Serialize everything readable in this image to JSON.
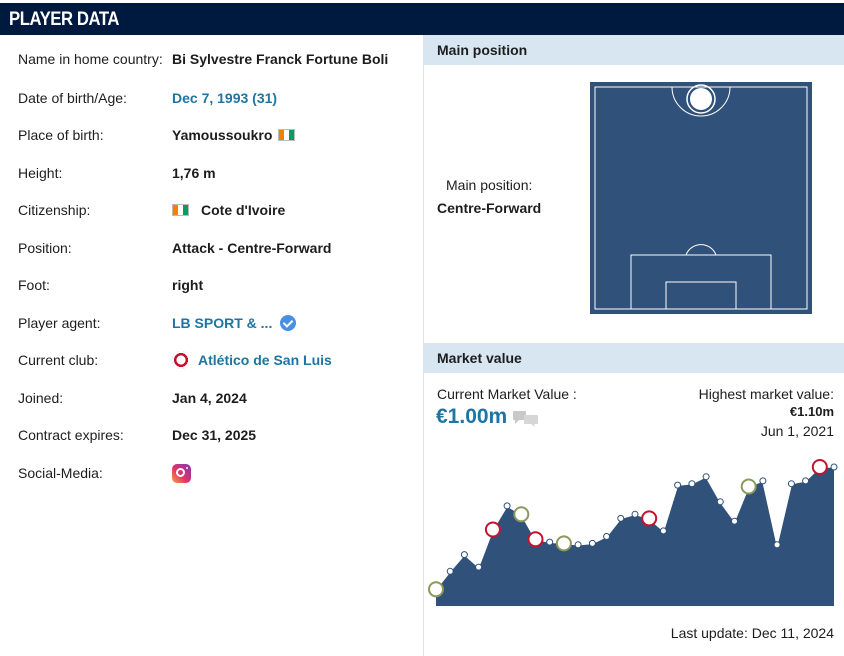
{
  "header": {
    "title": "PLAYER DATA"
  },
  "player": {
    "rows": [
      {
        "label": "Name in home country:",
        "value": "Bi Sylvestre Franck Fortune Boli"
      },
      {
        "label": "Date of birth/Age:",
        "value": "Dec 7, 1993 (31)"
      },
      {
        "label": "Place of birth:",
        "value": "Yamoussoukro"
      },
      {
        "label": "Height:",
        "value": "1,76 m"
      },
      {
        "label": "Citizenship:",
        "value": "Cote d'Ivoire"
      },
      {
        "label": "Position:",
        "value": "Attack - Centre-Forward"
      },
      {
        "label": "Foot:",
        "value": "right"
      },
      {
        "label": "Player agent:",
        "value": "LB SPORT & ..."
      },
      {
        "label": "Current club:",
        "value": "Atlético de San Luis"
      },
      {
        "label": "Joined:",
        "value": "Jan 4, 2024"
      },
      {
        "label": "Contract expires:",
        "value": "Dec 31, 2025"
      },
      {
        "label": "Social-Media:",
        "value": ""
      }
    ],
    "flag_colors": [
      "#f77f00",
      "#ffffff",
      "#009e60"
    ]
  },
  "main_position": {
    "heading": "Main position",
    "label": "Main position:",
    "value": "Centre-Forward",
    "pitch_color": "#30517a"
  },
  "market_value": {
    "heading": "Market value",
    "current_label": "Current Market Value :",
    "current_value": "€1.00m",
    "highest_label": "Highest market value:",
    "highest_value": "€1.10m",
    "highest_date": "Jun 1, 2021",
    "last_update": "Last update: Dec 11, 2024",
    "area_color": "#30517a"
  },
  "chart_data": {
    "type": "area",
    "series": [
      {
        "values": [
          0.12,
          0.25,
          0.37,
          0.28,
          0.55,
          0.72,
          0.66,
          0.48,
          0.46,
          0.45,
          0.44,
          0.45,
          0.5,
          0.63,
          0.66,
          0.63,
          0.54,
          0.87,
          0.88,
          0.93,
          0.75,
          0.61,
          0.86,
          0.9,
          0.44,
          0.88,
          0.9,
          1.0,
          1.0
        ]
      }
    ],
    "icons": [
      "ligue-crest",
      "club-crest",
      "club-crest",
      "club-crest",
      "club-crest",
      "club-crest",
      "club-crest",
      "club-crest"
    ]
  }
}
